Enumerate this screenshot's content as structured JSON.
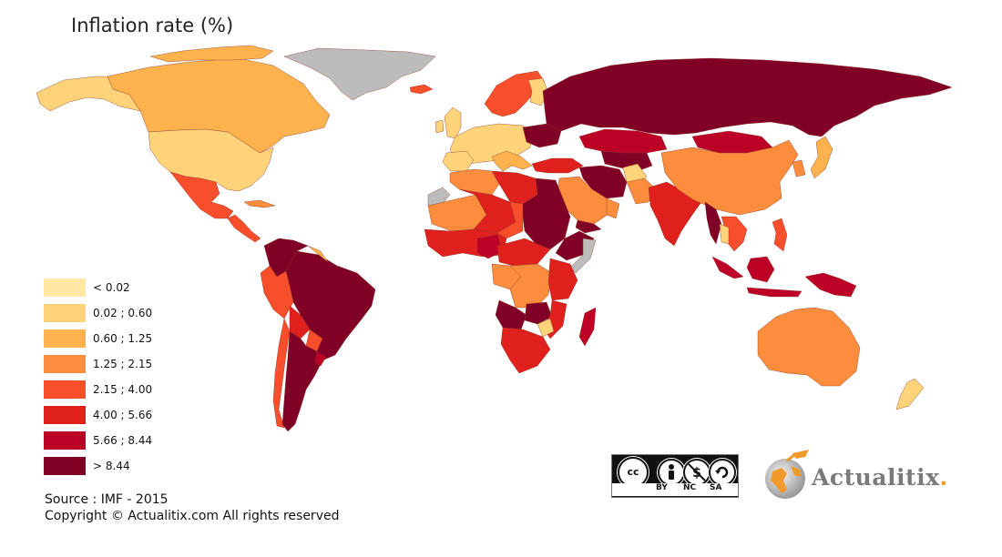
{
  "title": "Inflation rate (%)",
  "legend": {
    "items": [
      {
        "label": "< 0.02",
        "color": "#fee8a4"
      },
      {
        "label": "0.02 ; 0.60",
        "color": "#fed37a"
      },
      {
        "label": "0.60 ; 1.25",
        "color": "#fdb24e"
      },
      {
        "label": "1.25 ; 2.15",
        "color": "#fc8d3c"
      },
      {
        "label": "2.15 ; 4.00",
        "color": "#f94e2b"
      },
      {
        "label": "4.00 ; 5.66",
        "color": "#e0201c"
      },
      {
        "label": "5.66 ; 8.44",
        "color": "#bd0026"
      },
      {
        "label": "> 8.44",
        "color": "#800026"
      }
    ],
    "no_data_color": "#bcbcbc"
  },
  "source": "Source : IMF - 2015",
  "copyright": "Copyright © Actualitix.com All rights reserved",
  "license": {
    "by": "BY",
    "nc": "NC",
    "sa": "SA",
    "cc": "cc"
  },
  "brand": {
    "name": "Actualitix",
    "dot": "."
  }
}
